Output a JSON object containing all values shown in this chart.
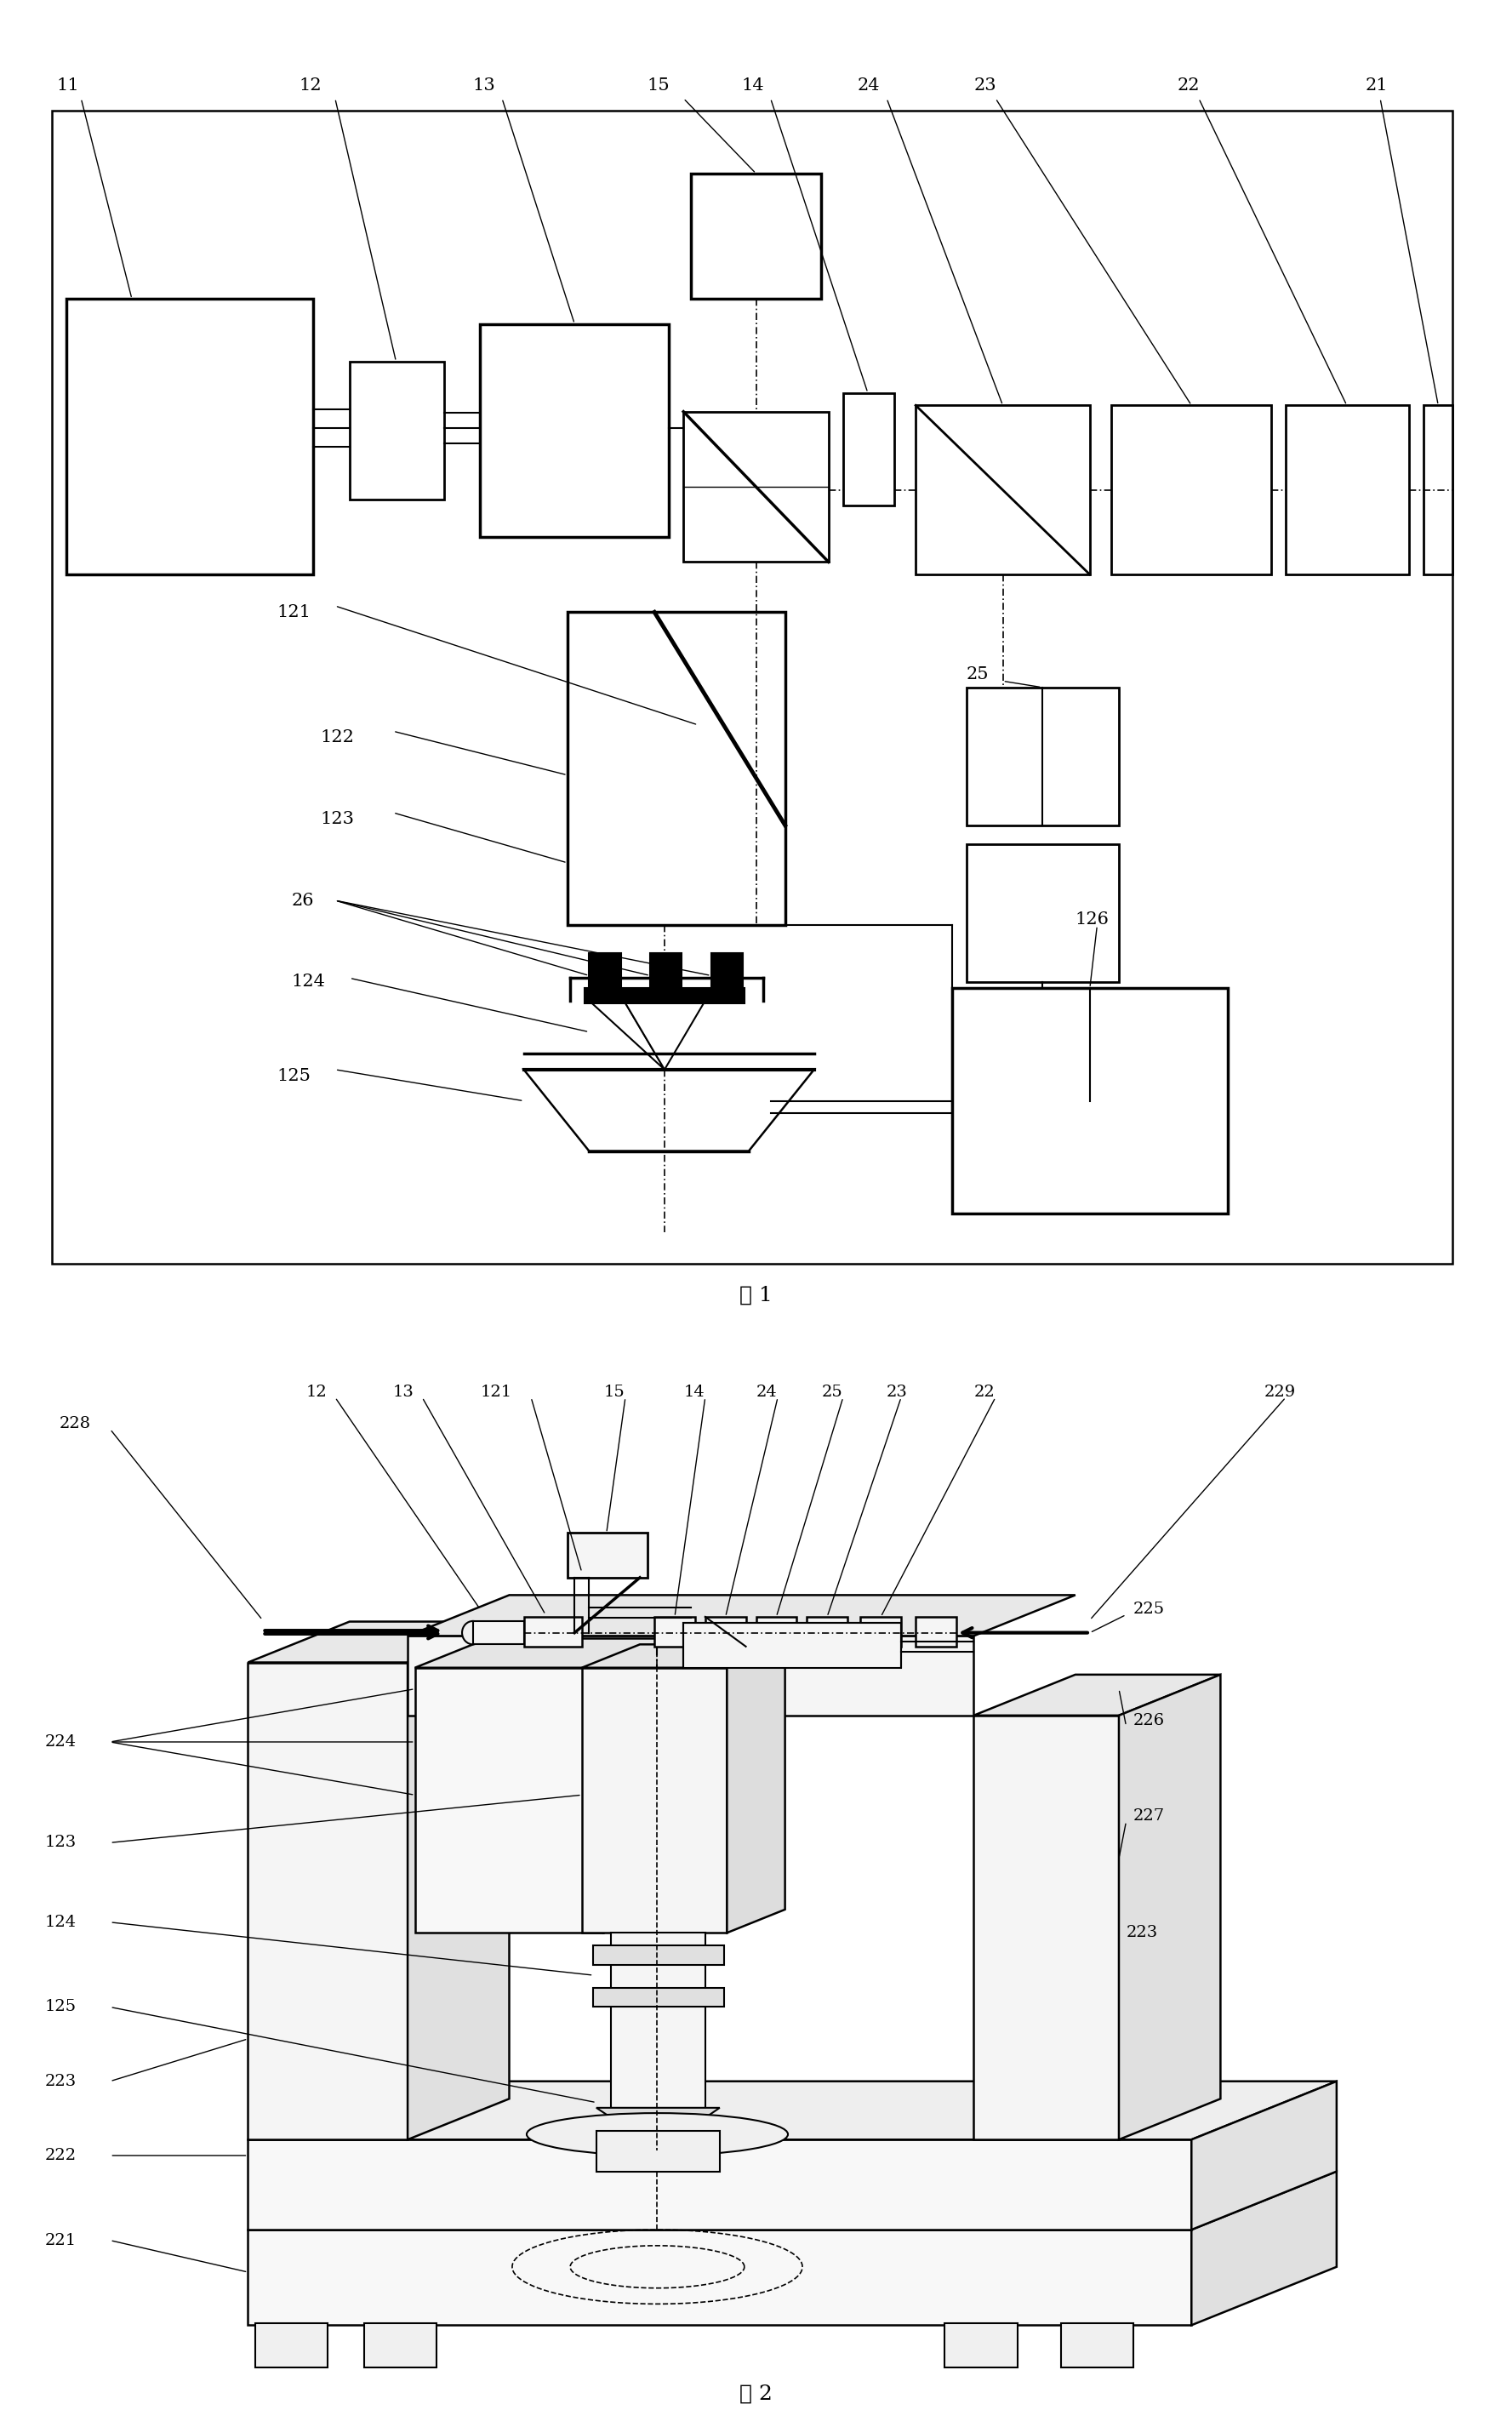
{
  "fig1_title": "图 1",
  "fig2_title": "图 2",
  "background_color": "#ffffff",
  "line_color": "#000000",
  "text_color": "#000000",
  "fontsize_label": 16,
  "fontsize_title": 20
}
